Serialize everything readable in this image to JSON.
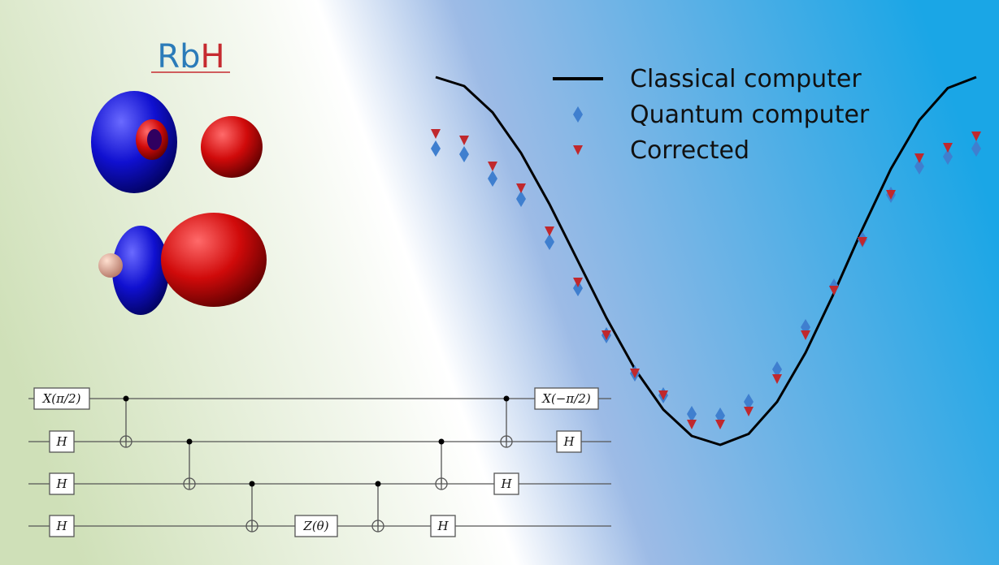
{
  "molecule": {
    "atoms": [
      {
        "symbol": "Rb",
        "color": "#2b7bb9"
      },
      {
        "symbol": "H",
        "color": "#c62a2f"
      }
    ]
  },
  "chart_data": {
    "type": "scatter",
    "x": [
      0,
      1,
      2,
      3,
      4,
      5,
      6,
      7,
      8,
      9,
      10,
      11,
      12,
      13,
      14,
      15,
      16,
      17,
      18,
      19
    ],
    "xlim": [
      0,
      19
    ],
    "ylim": [
      0,
      100
    ],
    "series": [
      {
        "name": "Classical computer",
        "color": "#000000",
        "marker": "line",
        "values": [
          99,
          96.8,
          90.3,
          80.3,
          67.7,
          53.7,
          39.7,
          27.1,
          17.1,
          10.6,
          8.4,
          11.1,
          19.0,
          31.1,
          45.8,
          61.6,
          76.4,
          88.4,
          96.3,
          99
        ]
      },
      {
        "name": "Quantum computer",
        "color": "#3f7fcf",
        "marker": "diamond",
        "values": [
          81.4,
          80,
          74,
          69,
          58.4,
          47,
          35.4,
          26,
          20.6,
          16,
          15.6,
          19,
          27,
          37.4,
          47.4,
          59,
          70,
          77,
          79.4,
          81.4
        ]
      },
      {
        "name": "Corrected",
        "color": "#c0282d",
        "marker": "triangle-down",
        "values": [
          85,
          83.4,
          77,
          71.6,
          61,
          48.4,
          35.4,
          26,
          20.6,
          13.4,
          13.4,
          16.6,
          24.6,
          35.4,
          46.4,
          58.4,
          70,
          79,
          81.6,
          84.4
        ]
      }
    ]
  },
  "circuit": {
    "gates": [
      "X(π/2)",
      "H",
      "H",
      "H",
      "Z(θ)",
      "H",
      "H",
      "X(−π/2)",
      "H"
    ]
  }
}
